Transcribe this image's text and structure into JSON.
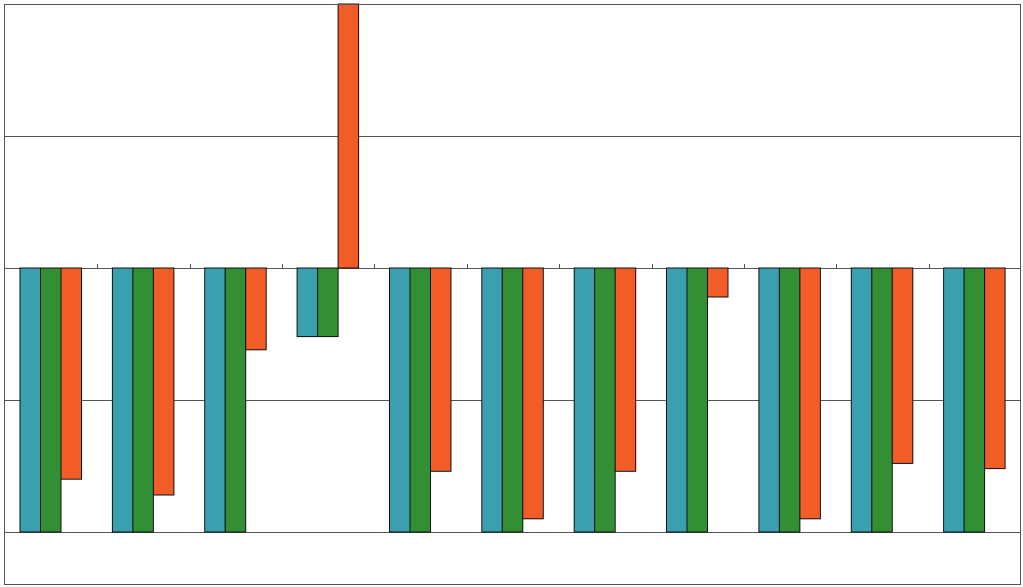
{
  "chart_data": {
    "type": "bar",
    "title": "",
    "xlabel": "",
    "ylabel": "",
    "ylim": [
      -2,
      1
    ],
    "grid": true,
    "legend": "none",
    "categories": [
      "",
      "",
      "",
      "",
      "",
      "",
      "",
      "",
      "",
      "",
      ""
    ],
    "series": [
      {
        "color": "#3aa0b0",
        "values": [
          -1,
          -1,
          -1,
          -0.26,
          -1,
          -1,
          -1,
          -1,
          -1,
          -1,
          -1
        ]
      },
      {
        "color": "#338f33",
        "values": [
          -1,
          -1,
          -1,
          -0.26,
          -1,
          -1,
          -1,
          -1,
          -1,
          -1,
          -1
        ]
      },
      {
        "color": "#f25c27",
        "values": [
          -0.8,
          -0.86,
          -0.31,
          1.0,
          -0.77,
          -0.95,
          -0.77,
          -0.11,
          -0.95,
          -0.74,
          -0.76
        ]
      }
    ]
  }
}
